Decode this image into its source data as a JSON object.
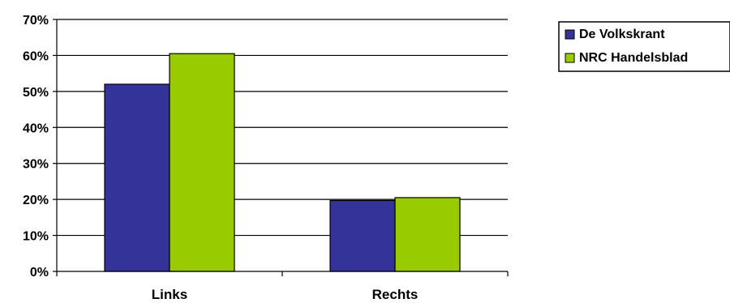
{
  "chart_data": {
    "type": "bar",
    "categories": [
      "Links",
      "Rechts"
    ],
    "series": [
      {
        "name": "De Volkskrant",
        "values": [
          52,
          19.7
        ],
        "color": "#333399"
      },
      {
        "name": "NRC Handelsblad",
        "values": [
          60.5,
          20.5
        ],
        "color": "#99CC00"
      }
    ],
    "ylim": [
      0,
      70
    ],
    "yticks": [
      0,
      10,
      20,
      30,
      40,
      50,
      60,
      70
    ],
    "ytick_labels": [
      "0%",
      "10%",
      "20%",
      "30%",
      "40%",
      "50%",
      "60%",
      "70%"
    ],
    "grid": true,
    "legend": "top-right"
  }
}
